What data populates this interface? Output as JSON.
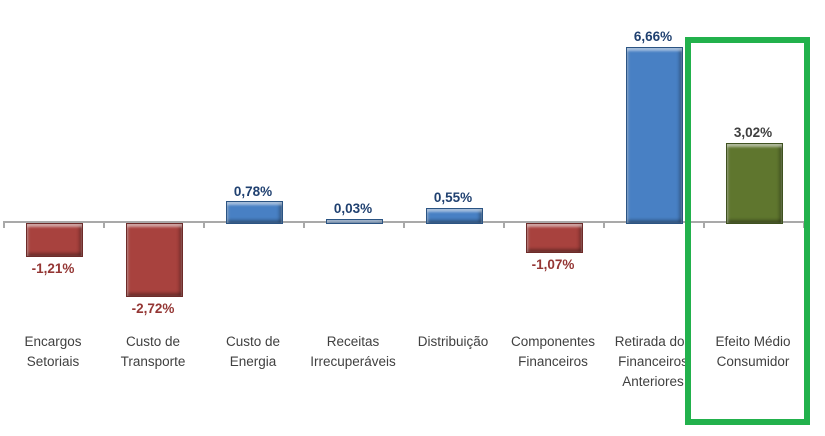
{
  "chart_data": {
    "type": "bar",
    "title": "",
    "unit": "%",
    "baseline": 0,
    "ylim": [
      -3.5,
      7.5
    ],
    "grid": false,
    "legend": "none",
    "categories": [
      {
        "id": "encargos-setoriais",
        "label_lines": [
          "Encargos",
          "Setoriais"
        ],
        "value": -1.21,
        "value_label": "-1,21%",
        "role": "negative"
      },
      {
        "id": "custo-de-transporte",
        "label_lines": [
          "Custo de",
          "Transporte"
        ],
        "value": -2.72,
        "value_label": "-2,72%",
        "role": "negative"
      },
      {
        "id": "custo-de-energia",
        "label_lines": [
          "Custo de",
          "Energia"
        ],
        "value": 0.78,
        "value_label": "0,78%",
        "role": "positive"
      },
      {
        "id": "receitas-irrecuperaveis",
        "label_lines": [
          "Receitas",
          "Irrecuperáveis"
        ],
        "value": 0.03,
        "value_label": "0,03%",
        "role": "positive"
      },
      {
        "id": "distribuicao",
        "label_lines": [
          "Distribuição"
        ],
        "value": 0.55,
        "value_label": "0,55%",
        "role": "positive"
      },
      {
        "id": "componentes-financeiros",
        "label_lines": [
          "Componentes",
          "Financeiros"
        ],
        "value": -1.07,
        "value_label": "-1,07%",
        "role": "negative"
      },
      {
        "id": "retirada-dos-financeiros-anteriores",
        "label_lines": [
          "Retirada dos",
          "Financeiros",
          "Anteriores"
        ],
        "value": 6.66,
        "value_label": "6,66%",
        "role": "positive"
      },
      {
        "id": "efeito-medio-consumidor",
        "label_lines": [
          "Efeito Médio",
          "Consumidor"
        ],
        "value": 3.02,
        "value_label": "3,02%",
        "role": "result",
        "highlighted": true
      }
    ]
  },
  "styles": {
    "roles": {
      "positive": {
        "fill": "#4880c4",
        "border": "#2b5483",
        "label_color": "#1f4070"
      },
      "negative": {
        "fill": "#a8423e",
        "border": "#6e2b29",
        "label_color": "#943634"
      },
      "result": {
        "fill": "#5f762e",
        "border": "#3f5220",
        "label_color": "#404040"
      }
    },
    "axis_color": "#a9a9a9",
    "category_label_color": "#404040",
    "highlight_box_color": "#22b14c",
    "background": "#ffffff"
  }
}
